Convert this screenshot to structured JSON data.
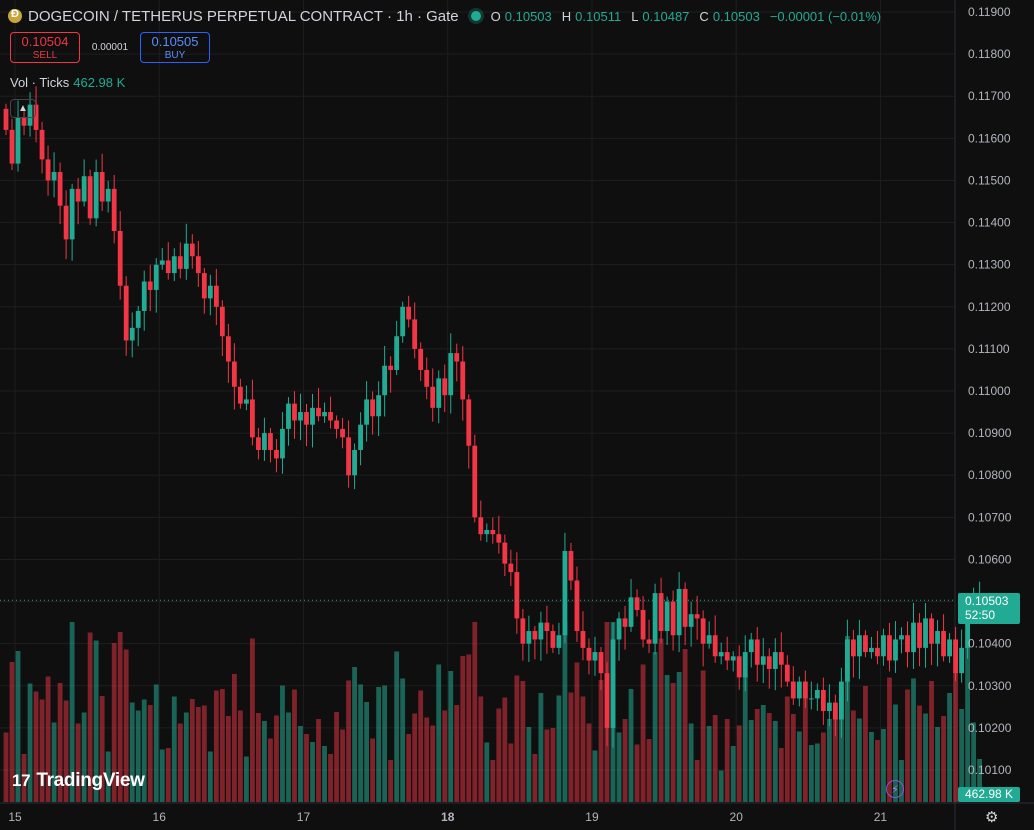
{
  "header": {
    "title": "DOGECOIN / TETHERUS PERPETUAL CONTRACT · 1h · Gate",
    "ohlc": [
      {
        "k": "O",
        "v": "0.10503"
      },
      {
        "k": "H",
        "v": "0.10511"
      },
      {
        "k": "L",
        "v": "0.10487"
      },
      {
        "k": "C",
        "v": "0.10503"
      }
    ],
    "change": "−0.00001 (−0.01%)"
  },
  "trade": {
    "sell_price": "0.10504",
    "sell_label": "SELL",
    "spread": "0.00001",
    "buy_price": "0.10505",
    "buy_label": "BUY"
  },
  "volume_legend": {
    "label": "Vol · Ticks",
    "value": "462.98 K"
  },
  "last_price": {
    "price": "0.10503",
    "countdown": "52:50"
  },
  "volume_label": "462.98 K",
  "logo": {
    "text": "TradingView",
    "mark": "𝟭𝟳"
  },
  "colors": {
    "up": "#22ab94",
    "down": "#f23645",
    "bg": "#0f0f0f",
    "grid": "#1e1e1e",
    "text": "#d1d4dc"
  },
  "chart_data": {
    "type": "candlestick",
    "symbol": "DOGECOIN / TETHERUS PERPETUAL CONTRACT",
    "interval": "1h",
    "exchange": "Gate",
    "y_ticks": [
      "0.11900",
      "0.11800",
      "0.11700",
      "0.11600",
      "0.11500",
      "0.11400",
      "0.11300",
      "0.11200",
      "0.11100",
      "0.11000",
      "0.10900",
      "0.10800",
      "0.10700",
      "0.10600",
      "0.10500",
      "0.10400",
      "0.10300",
      "0.10200",
      "0.10100"
    ],
    "ylim": [
      0.1004,
      0.1192
    ],
    "x_ticks": [
      {
        "label": "15",
        "bar": 0
      },
      {
        "label": "16",
        "bar": 24
      },
      {
        "label": "17",
        "bar": 48
      },
      {
        "label": "18",
        "bar": 72
      },
      {
        "label": "19",
        "bar": 96
      },
      {
        "label": "20",
        "bar": 120
      },
      {
        "label": "21",
        "bar": 144
      }
    ],
    "last_price": 0.10503,
    "closes": [
      0.1162,
      0.1154,
      0.1165,
      0.1163,
      0.1168,
      0.1162,
      0.1155,
      0.115,
      0.1152,
      0.1144,
      0.1136,
      0.1148,
      0.1145,
      0.1151,
      0.1141,
      0.1152,
      0.1145,
      0.1148,
      0.1138,
      0.1125,
      0.1112,
      0.1115,
      0.1119,
      0.1126,
      0.1124,
      0.113,
      0.1131,
      0.1128,
      0.1132,
      0.1129,
      0.1135,
      0.1132,
      0.1128,
      0.1122,
      0.1125,
      0.112,
      0.1113,
      0.1107,
      0.1101,
      0.1097,
      0.1098,
      0.1089,
      0.1086,
      0.109,
      0.1086,
      0.1084,
      0.1091,
      0.1097,
      0.1093,
      0.1095,
      0.1092,
      0.1096,
      0.1094,
      0.1095,
      0.1093,
      0.1091,
      0.1089,
      0.108,
      0.1086,
      0.1092,
      0.1098,
      0.1094,
      0.1099,
      0.1106,
      0.1105,
      0.1113,
      0.112,
      0.1117,
      0.111,
      0.1105,
      0.1101,
      0.1096,
      0.1103,
      0.1099,
      0.1109,
      0.1107,
      0.1098,
      0.1087,
      0.107,
      0.1066,
      0.1067,
      0.1066,
      0.1064,
      0.1059,
      0.1057,
      0.1046,
      0.104,
      0.1043,
      0.1041,
      0.1045,
      0.1043,
      0.1039,
      0.1042,
      0.1062,
      0.1055,
      0.1043,
      0.1039,
      0.1036,
      0.1038,
      0.1033,
      0.102,
      0.1041,
      0.1046,
      0.1044,
      0.1051,
      0.1048,
      0.1041,
      0.104,
      0.1052,
      0.1043,
      0.105,
      0.1042,
      0.1053,
      0.1044,
      0.1047,
      0.1046,
      0.104,
      0.1042,
      0.1037,
      0.1038,
      0.1036,
      0.1037,
      0.1032,
      0.1038,
      0.1041,
      0.1035,
      0.1037,
      0.1034,
      0.1038,
      0.1035,
      0.1031,
      0.1027,
      0.1031,
      0.1027,
      0.1027,
      0.1029,
      0.1024,
      0.1026,
      0.1022,
      0.1031,
      0.1041,
      0.1037,
      0.1042,
      0.1038,
      0.1039,
      0.1037,
      0.1042,
      0.1036,
      0.1041,
      0.1042,
      0.1038,
      0.1045,
      0.1039,
      0.1046,
      0.104,
      0.1043,
      0.1037,
      0.1041,
      0.1033,
      0.1039,
      0.1048,
      0.105,
      0.105
    ]
  }
}
